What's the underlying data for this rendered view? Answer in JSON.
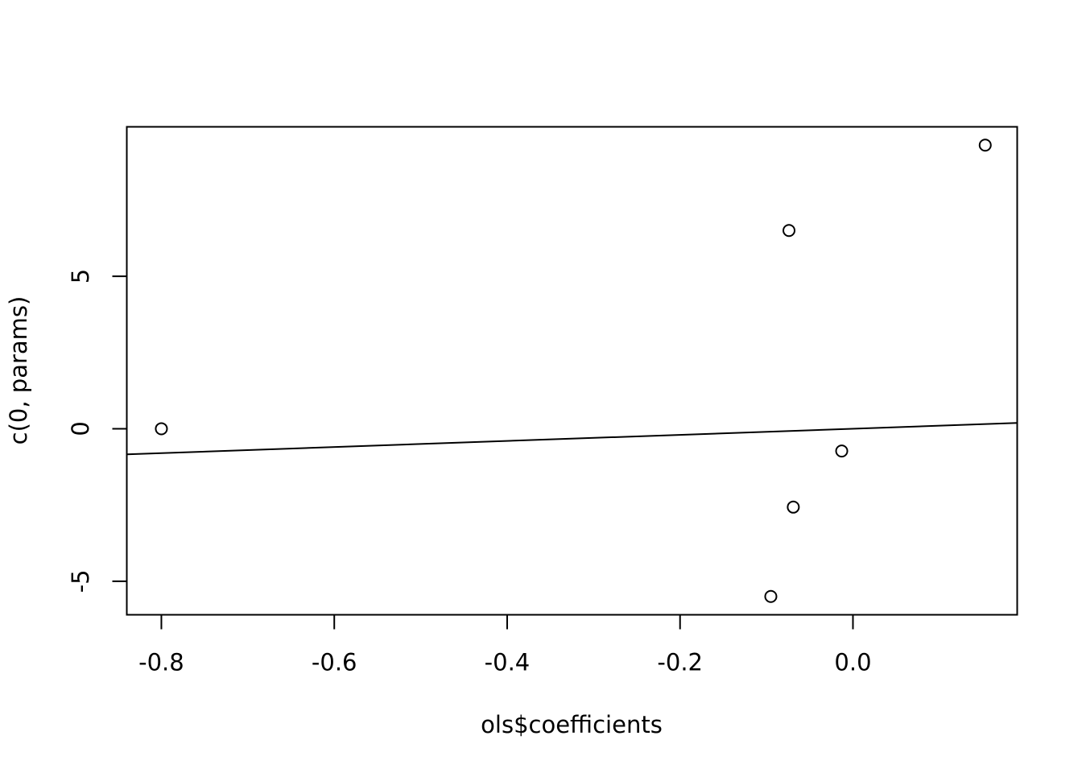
{
  "chart_data": {
    "type": "scatter",
    "title": "",
    "xlabel": "ols$coefficients",
    "ylabel": "c(0, params)",
    "xlim": [
      -0.84,
      0.19
    ],
    "ylim": [
      -6.1,
      9.9
    ],
    "xticks": [
      -0.8,
      -0.6,
      -0.4,
      -0.2,
      0.0
    ],
    "xtick_labels": [
      "-0.8",
      "-0.6",
      "-0.4",
      "-0.2",
      "0.0"
    ],
    "yticks": [
      -5,
      0,
      5
    ],
    "ytick_labels": [
      "-5",
      "0",
      "5"
    ],
    "grid": false,
    "legend": "none",
    "points": [
      {
        "x": -0.8,
        "y": 0.0
      },
      {
        "x": 0.153,
        "y": 9.3
      },
      {
        "x": -0.074,
        "y": 6.5
      },
      {
        "x": -0.013,
        "y": -0.73
      },
      {
        "x": -0.069,
        "y": -2.57
      },
      {
        "x": -0.095,
        "y": -5.5
      }
    ],
    "reference_line": {
      "intercept": 0.0,
      "slope": 1.0
    },
    "colors": {
      "points": "#000000",
      "line": "#000000",
      "axes": "#000000"
    }
  }
}
